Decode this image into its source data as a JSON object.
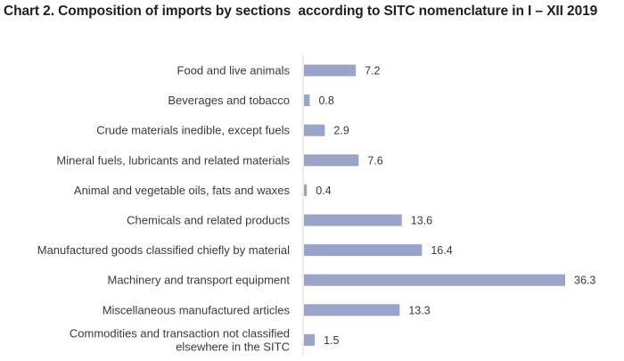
{
  "title": "Chart 2. Composition of imports by sections  according to SITC nomenclature in I – XII 2019",
  "chart_data": {
    "type": "bar",
    "orientation": "horizontal",
    "title": "Chart 2. Composition of imports by sections  according to SITC nomenclature in I – XII 2019",
    "xlabel": "",
    "ylabel": "",
    "xlim": [
      0,
      36.3
    ],
    "grid": false,
    "legend": "none",
    "bar_color": "#9aa3c8",
    "categories": [
      [
        "Food and live animals"
      ],
      [
        "Beverages and tobacco"
      ],
      [
        "Crude materials inedible, except fuels"
      ],
      [
        "Mineral fuels, lubricants and related materials"
      ],
      [
        "Animal and vegetable oils, fats and waxes"
      ],
      [
        "Chemicals and related products"
      ],
      [
        "Manufactured goods classified chiefly by material"
      ],
      [
        "Machinery and transport equipment"
      ],
      [
        "Miscellaneous manufactured articles"
      ],
      [
        "Commodities and transaction not classified",
        "elsewhere in the SITC"
      ]
    ],
    "values": [
      7.2,
      0.8,
      2.9,
      7.6,
      0.4,
      13.6,
      16.4,
      36.3,
      13.3,
      1.5
    ],
    "value_labels": [
      "7.2",
      "0.8",
      "2.9",
      "7.6",
      "0.4",
      "13.6",
      "16.4",
      "36.3",
      "13.3",
      "1.5"
    ]
  }
}
